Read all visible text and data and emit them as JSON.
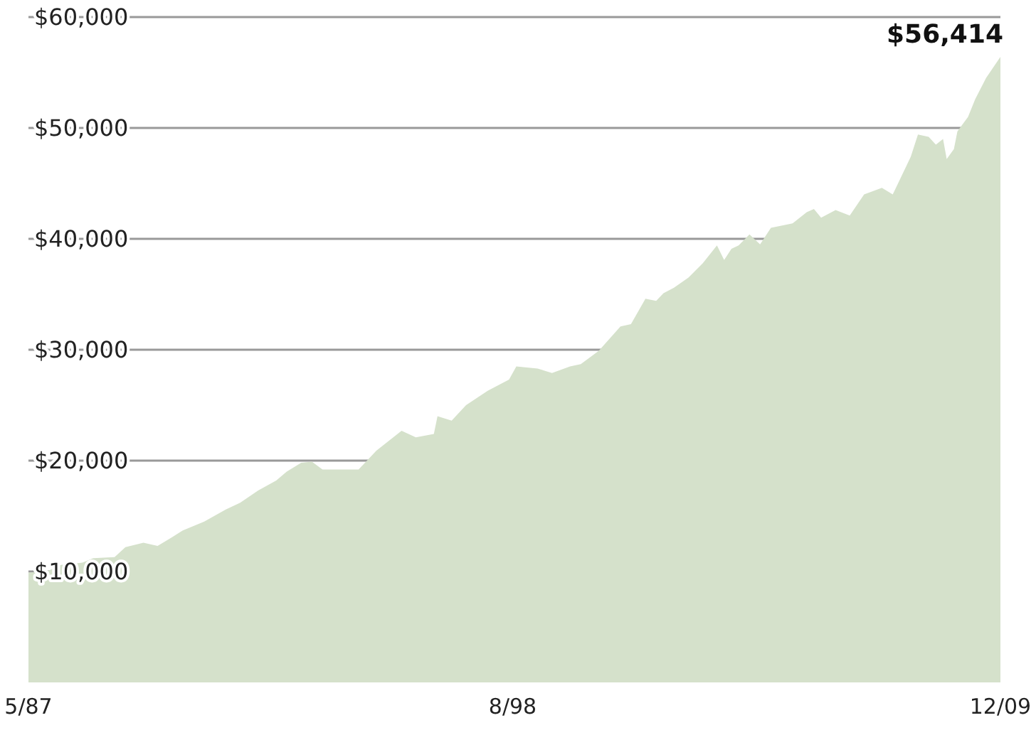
{
  "chart_data": {
    "type": "area",
    "x": [
      "1987-05",
      "1987-10",
      "1988-02",
      "1988-08",
      "1988-11",
      "1989-05",
      "1989-08",
      "1990-01",
      "1990-05",
      "1990-09",
      "1990-12",
      "1991-06",
      "1991-12",
      "1992-04",
      "1992-09",
      "1993-02",
      "1993-05",
      "1993-09",
      "1993-12",
      "1994-03",
      "1994-08",
      "1995-01",
      "1995-06",
      "1996-01",
      "1996-05",
      "1996-10",
      "1996-11",
      "1997-03",
      "1997-07",
      "1998-01",
      "1998-07",
      "1998-09",
      "1999-03",
      "1999-07",
      "1999-12",
      "2000-03",
      "2000-08",
      "2001-02",
      "2001-05",
      "2001-09",
      "2001-12",
      "2002-02",
      "2002-05",
      "2002-09",
      "2003-01",
      "2003-05",
      "2003-07",
      "2003-09",
      "2003-11",
      "2004-02",
      "2004-05",
      "2004-08",
      "2005-02",
      "2005-06",
      "2005-08",
      "2005-10",
      "2006-02",
      "2006-06",
      "2006-10",
      "2007-03",
      "2007-06",
      "2007-11",
      "2008-01",
      "2008-04",
      "2008-06",
      "2008-08",
      "2008-09",
      "2008-11",
      "2008-12",
      "2009-03",
      "2009-05",
      "2009-08",
      "2009-12"
    ],
    "series": [
      {
        "color": "#d5e1cb",
        "values": [
          9900,
          10000,
          10600,
          10800,
          11200,
          11300,
          12200,
          12600,
          12300,
          13100,
          13700,
          14500,
          15600,
          16200,
          17300,
          18200,
          19000,
          19800,
          19900,
          19200,
          19200,
          19200,
          20900,
          22700,
          22100,
          22400,
          24000,
          23600,
          25000,
          26300,
          27300,
          28500,
          28300,
          27900,
          28500,
          28700,
          29900,
          32100,
          32300,
          34600,
          34400,
          35100,
          35600,
          36500,
          37800,
          39400,
          38100,
          39100,
          39400,
          40400,
          39500,
          41000,
          41400,
          42400,
          42700,
          41900,
          42600,
          42100,
          44000,
          44600,
          44000,
          47400,
          49400,
          49200,
          48500,
          49000,
          47200,
          48100,
          49700,
          51000,
          52600,
          54500,
          56414
        ]
      }
    ],
    "xlim": [
      "1987-05",
      "2009-12"
    ],
    "xticks": [
      {
        "value": "1987-05",
        "label": "5/87"
      },
      {
        "value": "1998-08",
        "label": "8/98"
      },
      {
        "value": "2009-12",
        "label": "12/09"
      }
    ],
    "ylim": [
      0,
      60000
    ],
    "yticks": [
      {
        "value": 10000,
        "label": "$10,000"
      },
      {
        "value": 20000,
        "label": "$20,000"
      },
      {
        "value": 30000,
        "label": "$30,000"
      },
      {
        "value": 40000,
        "label": "$40,000"
      },
      {
        "value": 50000,
        "label": "$50,000"
      },
      {
        "value": 60000,
        "label": "$60,000"
      }
    ],
    "grid": "y",
    "annotations": [
      {
        "text": "$56,414",
        "x": "2009-12",
        "y": 56414
      }
    ]
  }
}
